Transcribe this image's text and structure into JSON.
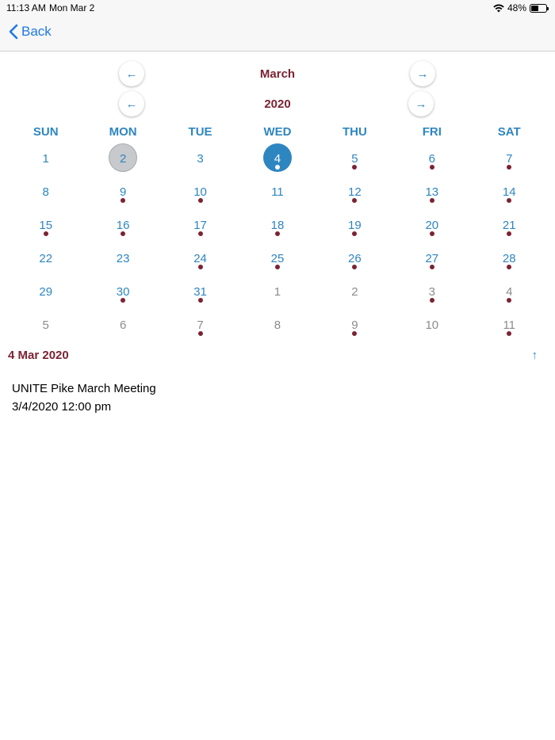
{
  "status": {
    "time": "11:13 AM",
    "date": "Mon Mar 2",
    "battery": "48%"
  },
  "nav": {
    "back_label": "Back"
  },
  "month_nav": {
    "label": "March",
    "prev": "←",
    "next": "→"
  },
  "year_nav": {
    "label": "2020",
    "prev": "←",
    "next": "→"
  },
  "weekdays": [
    "SUN",
    "MON",
    "TUE",
    "WED",
    "THU",
    "FRI",
    "SAT"
  ],
  "weeks": [
    [
      {
        "d": "1"
      },
      {
        "d": "2",
        "today": true
      },
      {
        "d": "3"
      },
      {
        "d": "4",
        "selected": true,
        "dot": true
      },
      {
        "d": "5",
        "dot": true
      },
      {
        "d": "6",
        "dot": true
      },
      {
        "d": "7",
        "dot": true
      }
    ],
    [
      {
        "d": "8"
      },
      {
        "d": "9",
        "dot": true
      },
      {
        "d": "10",
        "dot": true
      },
      {
        "d": "11"
      },
      {
        "d": "12",
        "dot": true
      },
      {
        "d": "13",
        "dot": true
      },
      {
        "d": "14",
        "dot": true
      }
    ],
    [
      {
        "d": "15",
        "dot": true
      },
      {
        "d": "16",
        "dot": true
      },
      {
        "d": "17",
        "dot": true
      },
      {
        "d": "18",
        "dot": true
      },
      {
        "d": "19",
        "dot": true
      },
      {
        "d": "20",
        "dot": true
      },
      {
        "d": "21",
        "dot": true
      }
    ],
    [
      {
        "d": "22"
      },
      {
        "d": "23"
      },
      {
        "d": "24",
        "dot": true
      },
      {
        "d": "25",
        "dot": true
      },
      {
        "d": "26",
        "dot": true
      },
      {
        "d": "27",
        "dot": true
      },
      {
        "d": "28",
        "dot": true
      }
    ],
    [
      {
        "d": "29"
      },
      {
        "d": "30",
        "dot": true
      },
      {
        "d": "31",
        "dot": true
      },
      {
        "d": "1",
        "other": true
      },
      {
        "d": "2",
        "other": true
      },
      {
        "d": "3",
        "other": true,
        "dot": true
      },
      {
        "d": "4",
        "other": true,
        "dot": true
      }
    ],
    [
      {
        "d": "5",
        "other": true
      },
      {
        "d": "6",
        "other": true
      },
      {
        "d": "7",
        "other": true,
        "dot": true
      },
      {
        "d": "8",
        "other": true
      },
      {
        "d": "9",
        "other": true,
        "dot": true
      },
      {
        "d": "10",
        "other": true
      },
      {
        "d": "11",
        "other": true,
        "dot": true
      }
    ]
  ],
  "selected_date": "4 Mar 2020",
  "collapse_icon": "↑",
  "events": [
    {
      "title": "UNITE Pike March Meeting",
      "time": "3/4/2020 12:00 pm"
    }
  ],
  "colors": {
    "accent": "#2e86c1",
    "maroon": "#7b2332",
    "ios_blue": "#1f7ae0",
    "today_gray": "#c7c9cc"
  }
}
